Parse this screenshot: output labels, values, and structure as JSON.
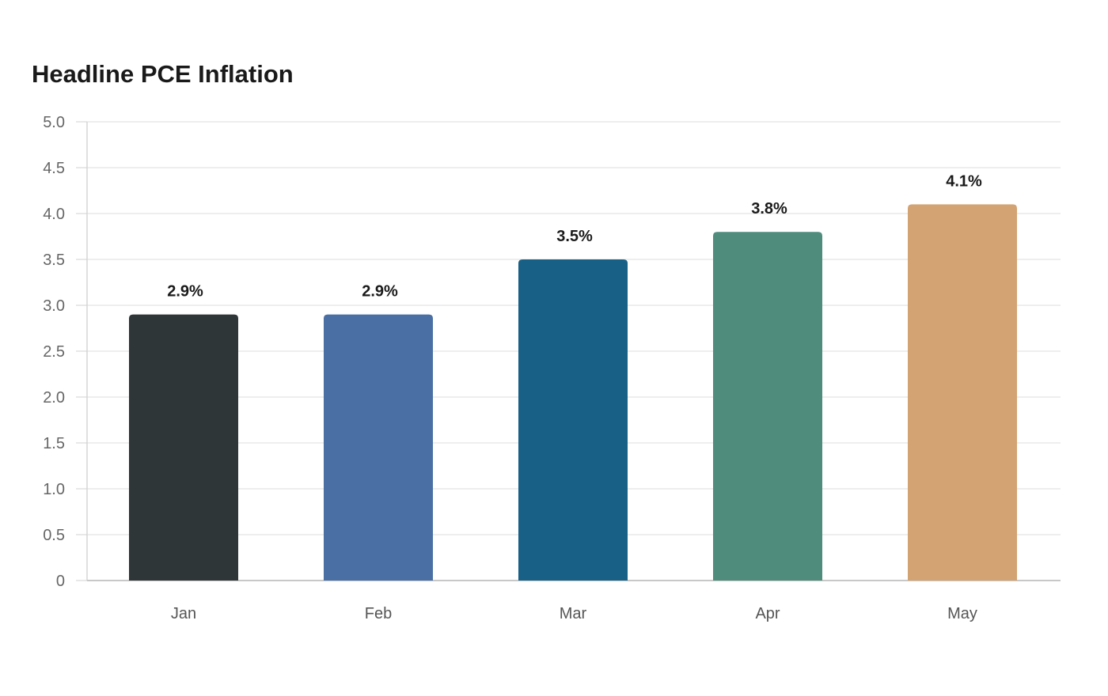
{
  "chart_data": {
    "type": "bar",
    "title": "Headline PCE Inflation",
    "xlabel": "",
    "ylabel": "",
    "categories": [
      "Jan",
      "Feb",
      "Mar",
      "Apr",
      "May"
    ],
    "values": [
      2.9,
      2.9,
      3.5,
      3.8,
      4.1
    ],
    "data_labels": [
      "2.9%",
      "2.9%",
      "3.5%",
      "3.8%",
      "4.1%"
    ],
    "bar_colors": [
      "#2e3638",
      "#4a6fa5",
      "#196086",
      "#4f8c7b",
      "#d3a373"
    ],
    "ylim": [
      0,
      5.0
    ],
    "yticks": [
      0,
      0.5,
      1.0,
      1.5,
      2.0,
      2.5,
      3.0,
      3.5,
      4.0,
      4.5,
      5.0
    ],
    "ytick_labels": [
      "0",
      "0.5",
      "1.0",
      "1.5",
      "2.0",
      "2.5",
      "3.0",
      "3.5",
      "4.0",
      "4.5",
      "5.0"
    ],
    "grid": true,
    "legend": "none"
  }
}
